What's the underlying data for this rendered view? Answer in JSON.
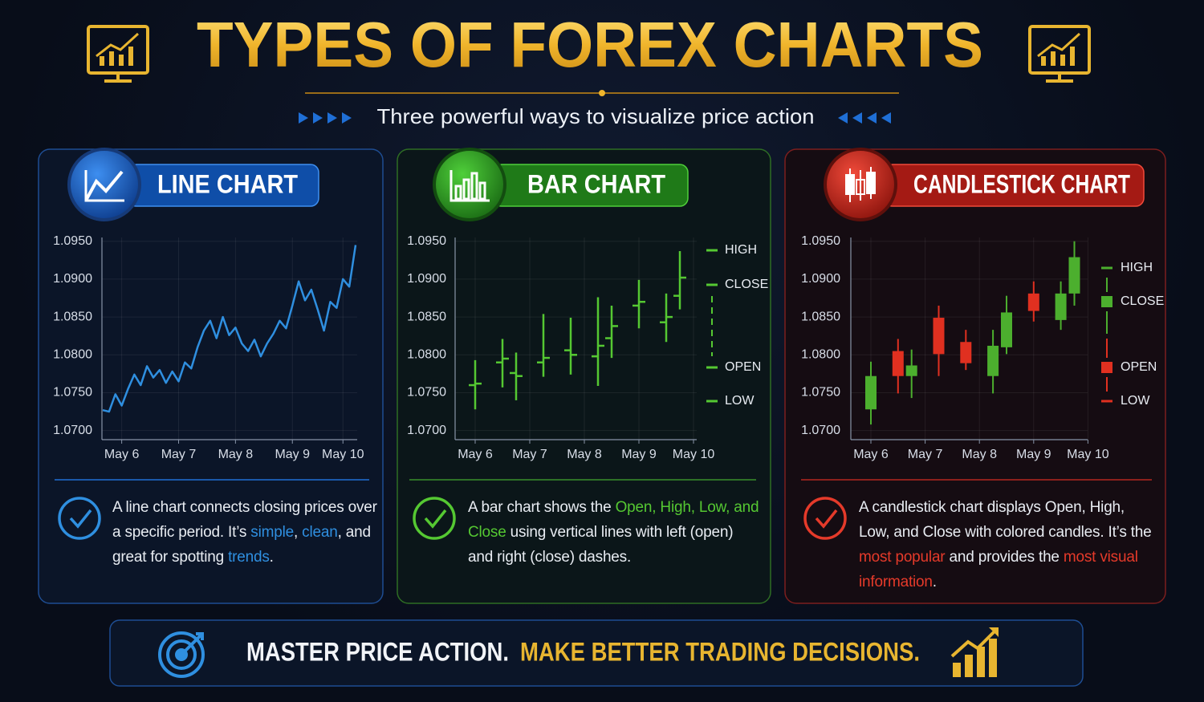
{
  "header": {
    "title": "TYPES OF FOREX CHARTS",
    "subtitle": "Three powerful ways to visualize price action"
  },
  "chart_data": [
    {
      "type": "line",
      "title": "LINE CHART",
      "categories": [
        null,
        null,
        null,
        "May 6",
        null,
        null,
        null,
        null,
        null,
        null,
        null,
        null,
        "May 7",
        null,
        null,
        null,
        null,
        null,
        null,
        null,
        null,
        "May 8",
        null,
        null,
        null,
        null,
        null,
        null,
        null,
        null,
        "May 9",
        null,
        null,
        null,
        null,
        null,
        null,
        null,
        "May 10",
        null,
        null
      ],
      "series": [
        {
          "color": "#2f8fe0",
          "values": [
            1.0727,
            1.0725,
            1.0748,
            1.0733,
            1.0755,
            1.0774,
            1.076,
            1.0785,
            1.077,
            1.078,
            1.0763,
            1.0778,
            1.0765,
            1.079,
            1.0782,
            1.081,
            1.0832,
            1.0845,
            1.0822,
            1.085,
            1.0826,
            1.0836,
            1.0815,
            1.0805,
            1.082,
            1.0798,
            1.0815,
            1.0828,
            1.0845,
            1.0835,
            1.0865,
            1.0897,
            1.0872,
            1.0886,
            1.086,
            1.0832,
            1.087,
            1.0862,
            1.09,
            1.089,
            1.0945
          ]
        }
      ],
      "ylim": [
        1.0688,
        1.0955
      ],
      "yticks": [
        {
          "value": 1.07,
          "label": "1.0700"
        },
        {
          "value": 1.075,
          "label": "1.0750"
        },
        {
          "value": 1.08,
          "label": "1.0800"
        },
        {
          "value": 1.085,
          "label": "1.0850"
        },
        {
          "value": 1.09,
          "label": "1.0900"
        },
        {
          "value": 1.095,
          "label": "1.0950"
        }
      ],
      "grid": true
    },
    {
      "type": "ohlc",
      "title": "BAR CHART",
      "color": "#55c832",
      "categories": [
        "May 6",
        null,
        null,
        null,
        "May 7",
        null,
        null,
        null,
        "May 8",
        null,
        null,
        null,
        "May 9",
        null,
        null,
        null,
        "May 10"
      ],
      "open": [
        1.076,
        null,
        1.079,
        1.0776,
        null,
        1.079,
        null,
        1.0806,
        null,
        1.0798,
        1.0822,
        null,
        1.0865,
        null,
        1.0843,
        1.0878,
        null
      ],
      "high": [
        1.0793,
        null,
        1.0821,
        1.0803,
        null,
        1.0854,
        null,
        1.0849,
        null,
        1.0876,
        1.0865,
        null,
        1.0899,
        null,
        1.0881,
        1.0937,
        null
      ],
      "low": [
        1.0728,
        null,
        1.0757,
        1.074,
        null,
        1.0771,
        null,
        1.0774,
        null,
        1.0759,
        1.0796,
        null,
        1.0835,
        null,
        1.0817,
        1.086,
        null
      ],
      "close": [
        1.0762,
        null,
        1.0795,
        1.0772,
        null,
        1.0796,
        null,
        1.08,
        null,
        1.0812,
        1.0838,
        null,
        1.087,
        null,
        1.085,
        1.0902,
        null
      ],
      "legend": [
        {
          "label": "HIGH",
          "color": "#55c832"
        },
        {
          "label": "CLOSE",
          "color": "#55c832"
        },
        {
          "label": "OPEN",
          "color": "#55c832"
        },
        {
          "label": "LOW",
          "color": "#55c832"
        }
      ],
      "ylim": [
        1.0688,
        1.0955
      ],
      "yticks": [
        {
          "value": 1.07,
          "label": "1.0700"
        },
        {
          "value": 1.075,
          "label": "1.0750"
        },
        {
          "value": 1.08,
          "label": "1.0800"
        },
        {
          "value": 1.085,
          "label": "1.0850"
        },
        {
          "value": 1.09,
          "label": "1.0900"
        },
        {
          "value": 1.095,
          "label": "1.0950"
        }
      ],
      "grid": true
    },
    {
      "type": "candlestick",
      "title": "CANDLESTICK CHART",
      "up_color": "#4caf2e",
      "down_color": "#e03020",
      "categories": [
        "May 6",
        null,
        null,
        null,
        "May 7",
        null,
        null,
        null,
        "May 8",
        null,
        null,
        null,
        "May 9",
        null,
        null,
        null,
        "May 10"
      ],
      "open": [
        1.0728,
        null,
        1.0805,
        1.0772,
        null,
        1.0849,
        null,
        1.0817,
        null,
        1.0772,
        1.081,
        null,
        1.0881,
        null,
        1.0846,
        1.0881,
        null
      ],
      "high": [
        1.0791,
        null,
        1.0821,
        1.0807,
        null,
        1.0865,
        null,
        1.0833,
        null,
        1.0833,
        1.0878,
        null,
        1.0897,
        null,
        1.0897,
        1.095,
        null
      ],
      "low": [
        1.0708,
        null,
        1.0749,
        1.0743,
        null,
        1.0772,
        null,
        1.078,
        null,
        1.0749,
        1.0801,
        null,
        1.0844,
        null,
        1.0833,
        1.0865,
        null
      ],
      "close": [
        1.0772,
        null,
        1.0772,
        1.0786,
        null,
        1.0801,
        null,
        1.0789,
        null,
        1.0812,
        1.0856,
        null,
        1.0858,
        null,
        1.0881,
        1.0929,
        null
      ],
      "legend": [
        {
          "label": "HIGH",
          "color": "#4caf2e"
        },
        {
          "label": "CLOSE",
          "color": "#4caf2e"
        },
        {
          "label": "OPEN",
          "color": "#e03020"
        },
        {
          "label": "LOW",
          "color": "#e03020"
        }
      ],
      "ylim": [
        1.0688,
        1.0955
      ],
      "yticks": [
        {
          "value": 1.07,
          "label": "1.0700"
        },
        {
          "value": 1.075,
          "label": "1.0750"
        },
        {
          "value": 1.08,
          "label": "1.0800"
        },
        {
          "value": 1.085,
          "label": "1.0850"
        },
        {
          "value": 1.09,
          "label": "1.0900"
        },
        {
          "value": 1.095,
          "label": "1.0950"
        }
      ],
      "grid": true
    }
  ],
  "panels": [
    {
      "description": [
        {
          "text": "A line chart connects closing prices over a specific period. It’s "
        },
        {
          "text": "simple",
          "color": "#2f8fe0"
        },
        {
          "text": ", "
        },
        {
          "text": "clean",
          "color": "#2f8fe0"
        },
        {
          "text": ", and great for spotting "
        },
        {
          "text": "trends",
          "color": "#2f8fe0"
        },
        {
          "text": "."
        }
      ]
    },
    {
      "description": [
        {
          "text": "A bar chart shows the "
        },
        {
          "text": "Open, High, Low, and Close",
          "color": "#55c832"
        },
        {
          "text": " using vertical lines with left (open) and right (close) dashes."
        }
      ]
    },
    {
      "description": [
        {
          "text": "A candlestick chart displays Open, High, Low, and Close with colored candles. It’s the "
        },
        {
          "text": "most popular",
          "color": "#e53a2a"
        },
        {
          "text": " and provides the "
        },
        {
          "text": "most visual information",
          "color": "#e53a2a"
        },
        {
          "text": "."
        }
      ]
    }
  ],
  "footer": {
    "text": "MASTER PRICE ACTION.",
    "highlight": "MAKE BETTER TRADING DECISIONS."
  }
}
